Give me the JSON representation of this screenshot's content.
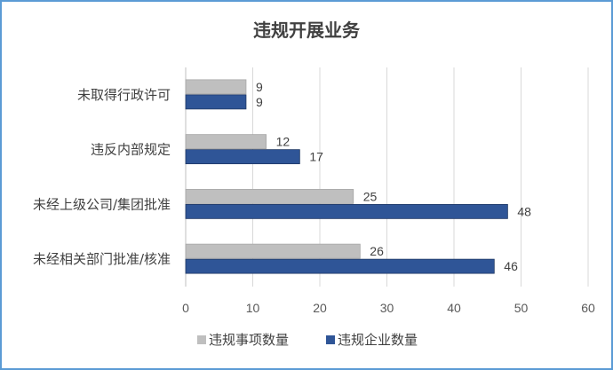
{
  "chart_data": {
    "type": "bar",
    "orientation": "horizontal",
    "title": "违规开展业务",
    "categories": [
      "未取得行政许可",
      "违反内部规定",
      "未经上级公司/集团批准",
      "未经相关部门批准/核准"
    ],
    "series": [
      {
        "name": "违规事项数量",
        "values": [
          9,
          12,
          25,
          26
        ],
        "color": "#bfbfbf"
      },
      {
        "name": "违规企业数量",
        "values": [
          9,
          17,
          48,
          46
        ],
        "color": "#2f5597"
      }
    ],
    "xlim": [
      0,
      60
    ],
    "xticks": [
      0,
      10,
      20,
      30,
      40,
      50,
      60
    ],
    "grid": true,
    "legend_position": "bottom"
  }
}
